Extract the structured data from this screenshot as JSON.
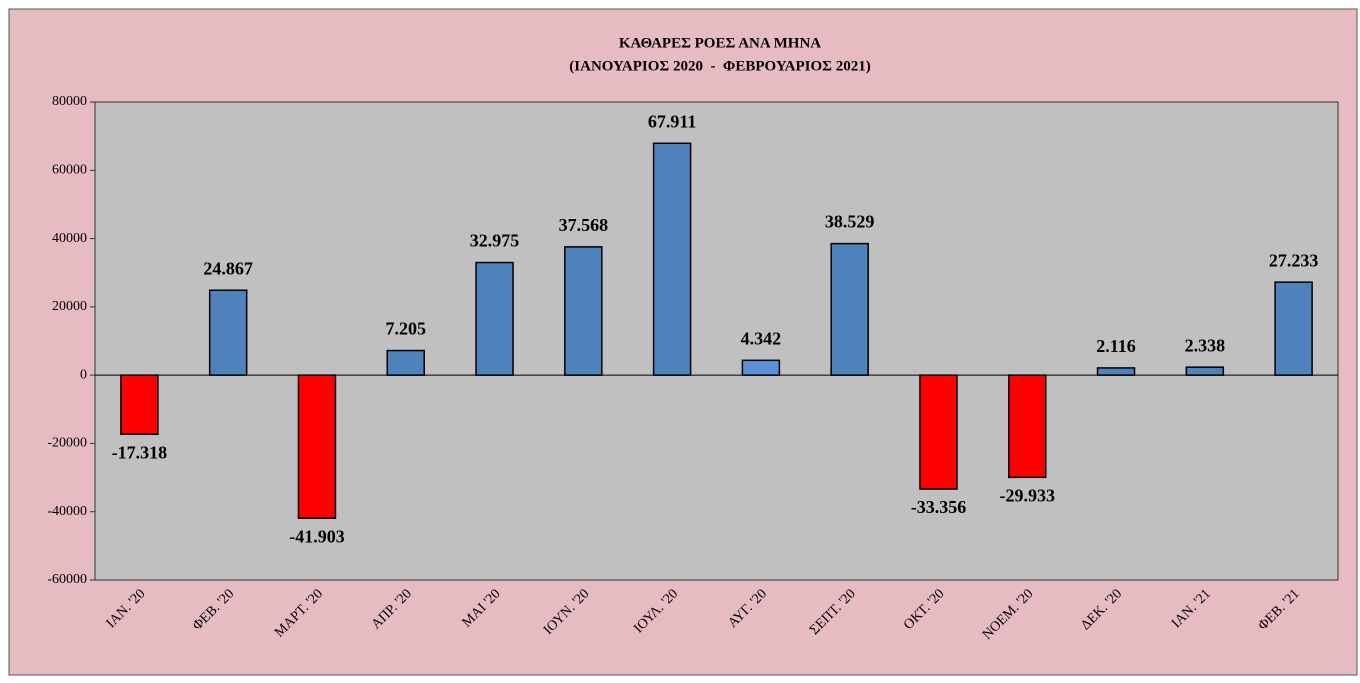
{
  "chart_data": {
    "type": "bar",
    "title": "ΚΑΘΑΡΕΣ ΡΟΕΣ ΑΝΑ ΜΗΝΑ",
    "subtitle": "(ΙΑΝΟΥΑΡΙΟΣ 2020  -  ΦΕΒΡΟΥΑΡΙΟΣ 2021)",
    "categories": [
      "ΙΑΝ. '20",
      "ΦΕΒ. '20",
      "ΜΑΡΤ. '20",
      "ΑΠΡ. '20",
      "ΜΑΙ '20",
      "ΙΟΥΝ. '20",
      "ΙΟΥΛ. '20",
      "ΑΥΓ. '20",
      "ΣΕΠΤ. '20",
      "ΟΚΤ. '20",
      "ΝΟΕΜ. '20",
      "ΔΕΚ. '20",
      "ΙΑΝ. '21",
      "ΦΕΒ. '21"
    ],
    "values": [
      -17318,
      24867,
      -41903,
      7205,
      32975,
      37568,
      67911,
      4342,
      38529,
      -33356,
      -29933,
      2116,
      2338,
      27233
    ],
    "value_labels": [
      "-17.318",
      "24.867",
      "-41.903",
      "7.205",
      "32.975",
      "37.568",
      "67.911",
      "4.342",
      "38.529",
      "-33.356",
      "-29.933",
      "2.116",
      "2.338",
      "27.233"
    ],
    "colors": [
      "#ff0000",
      "#4f81bd",
      "#ff0000",
      "#4f81bd",
      "#4f81bd",
      "#4f81bd",
      "#4f81bd",
      "#5b8fd8",
      "#4f81bd",
      "#ff0000",
      "#ff0000",
      "#4f81bd",
      "#4f81bd",
      "#4f81bd"
    ],
    "ylim": [
      -60000,
      80000
    ],
    "yticks": [
      -60000,
      -40000,
      -20000,
      0,
      20000,
      40000,
      60000,
      80000
    ],
    "grid": false
  }
}
